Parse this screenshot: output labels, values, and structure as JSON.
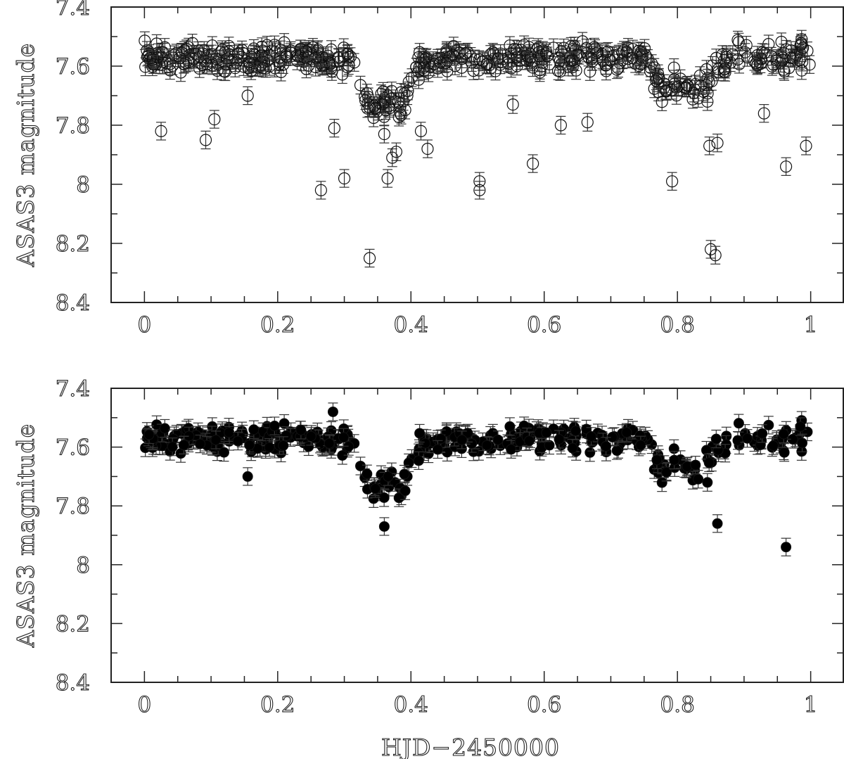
{
  "chart_data": [
    {
      "type": "scatter",
      "marker": "open-circle",
      "error_bars": true,
      "xlabel": "",
      "ylabel": "ASAS3 magnitude",
      "xlim": [
        -0.05,
        1.05
      ],
      "ylim": [
        8.4,
        7.4
      ],
      "y_inverted": true,
      "xticks": [
        0,
        0.2,
        0.4,
        0.6,
        0.8,
        1
      ],
      "xtick_labels": [
        "0",
        "0.2",
        "0.4",
        "0.6",
        "0.8",
        "1"
      ],
      "yticks": [
        7.4,
        7.6,
        7.8,
        8,
        8.2,
        8.4
      ],
      "ytick_labels": [
        "7.4",
        "7.6",
        "7.8",
        "8",
        "8.2",
        "8.4"
      ],
      "outliers": [
        [
          0.025,
          7.82
        ],
        [
          0.092,
          7.85
        ],
        [
          0.105,
          7.78
        ],
        [
          0.155,
          7.7
        ],
        [
          0.265,
          8.02
        ],
        [
          0.285,
          7.81
        ],
        [
          0.3,
          7.98
        ],
        [
          0.338,
          8.25
        ],
        [
          0.36,
          7.83
        ],
        [
          0.365,
          7.98
        ],
        [
          0.372,
          7.91
        ],
        [
          0.378,
          7.89
        ],
        [
          0.415,
          7.82
        ],
        [
          0.425,
          7.88
        ],
        [
          0.503,
          7.99
        ],
        [
          0.503,
          8.02
        ],
        [
          0.553,
          7.73
        ],
        [
          0.583,
          7.93
        ],
        [
          0.625,
          7.8
        ],
        [
          0.665,
          7.79
        ],
        [
          0.792,
          7.99
        ],
        [
          0.845,
          7.72
        ],
        [
          0.848,
          7.87
        ],
        [
          0.85,
          8.22
        ],
        [
          0.857,
          8.24
        ],
        [
          0.86,
          7.86
        ],
        [
          0.93,
          7.76
        ],
        [
          0.963,
          7.94
        ],
        [
          0.993,
          7.87
        ]
      ],
      "error_bar_size": 0.03
    },
    {
      "type": "scatter",
      "marker": "filled-circle",
      "error_bars": true,
      "xlabel": "HJD−2450000",
      "ylabel": "ASAS3 magnitude",
      "xlim": [
        -0.05,
        1.05
      ],
      "ylim": [
        8.4,
        7.4
      ],
      "y_inverted": true,
      "xticks": [
        0,
        0.2,
        0.4,
        0.6,
        0.8,
        1
      ],
      "xtick_labels": [
        "0",
        "0.2",
        "0.4",
        "0.6",
        "0.8",
        "1"
      ],
      "yticks": [
        7.4,
        7.6,
        7.8,
        8,
        8.2,
        8.4
      ],
      "ytick_labels": [
        "7.4",
        "7.6",
        "7.8",
        "8",
        "8.2",
        "8.4"
      ],
      "outliers": [
        [
          0.155,
          7.7
        ],
        [
          0.283,
          7.48
        ],
        [
          0.36,
          7.87
        ],
        [
          0.845,
          7.72
        ],
        [
          0.86,
          7.86
        ],
        [
          0.963,
          7.94
        ]
      ],
      "error_bar_size": 0.03
    }
  ]
}
